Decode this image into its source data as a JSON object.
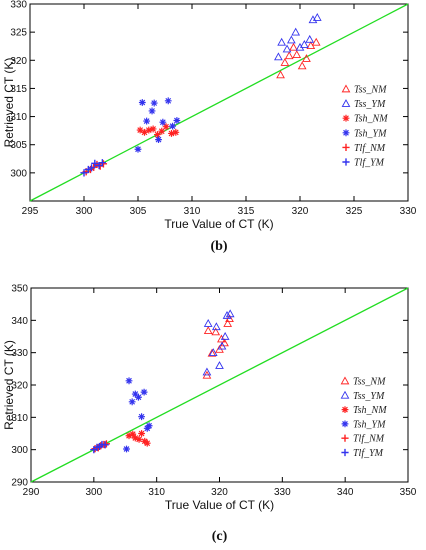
{
  "chart_data": [
    {
      "type": "scatter",
      "caption": "(b)",
      "xlabel": "True Value of CT (K)",
      "ylabel": "Retrieved CT (K)",
      "xlim": [
        295,
        330
      ],
      "ylim": [
        295,
        330
      ],
      "xticks": [
        295,
        300,
        305,
        310,
        315,
        320,
        325,
        330
      ],
      "yticks": [
        300,
        305,
        310,
        315,
        320,
        325,
        330
      ],
      "grid": false,
      "legend_position": "right",
      "reference_line": {
        "color": "#22dd22",
        "points": [
          [
            295,
            295
          ],
          [
            330,
            330
          ]
        ]
      },
      "series": [
        {
          "name": "Tss_NM",
          "marker": "triangle",
          "color": "#ff2222",
          "points": [
            [
              318.2,
              317.4
            ],
            [
              318.6,
              319.6
            ],
            [
              319.0,
              320.8
            ],
            [
              319.4,
              322.3
            ],
            [
              319.7,
              321.0
            ],
            [
              320.2,
              319.0
            ],
            [
              320.6,
              320.3
            ],
            [
              321.0,
              322.6
            ],
            [
              321.5,
              323.2
            ]
          ]
        },
        {
          "name": "Tss_YM",
          "marker": "triangle",
          "color": "#3333ee",
          "points": [
            [
              318.0,
              320.6
            ],
            [
              318.3,
              323.2
            ],
            [
              318.8,
              322.0
            ],
            [
              319.2,
              323.6
            ],
            [
              319.6,
              325.0
            ],
            [
              320.0,
              322.3
            ],
            [
              320.4,
              322.8
            ],
            [
              320.9,
              323.7
            ],
            [
              321.2,
              327.2
            ],
            [
              321.6,
              327.6
            ]
          ]
        },
        {
          "name": "Tsh_NM",
          "marker": "asterisk",
          "color": "#ff2222",
          "points": [
            [
              305.2,
              307.6
            ],
            [
              305.6,
              307.2
            ],
            [
              306.0,
              307.6
            ],
            [
              306.4,
              307.8
            ],
            [
              306.8,
              306.8
            ],
            [
              307.2,
              307.4
            ],
            [
              307.6,
              308.2
            ],
            [
              308.1,
              307.0
            ],
            [
              308.5,
              307.2
            ]
          ]
        },
        {
          "name": "Tsh_YM",
          "marker": "asterisk",
          "color": "#3333ee",
          "points": [
            [
              305.0,
              304.2
            ],
            [
              305.4,
              312.5
            ],
            [
              305.8,
              309.2
            ],
            [
              306.3,
              311.0
            ],
            [
              306.5,
              312.4
            ],
            [
              306.9,
              305.9
            ],
            [
              307.3,
              309.0
            ],
            [
              307.8,
              312.8
            ],
            [
              308.2,
              308.3
            ],
            [
              308.6,
              309.3
            ]
          ]
        },
        {
          "name": "Tlf_NM",
          "marker": "plus",
          "color": "#ff2222",
          "points": [
            [
              300.2,
              300.2
            ],
            [
              300.6,
              300.6
            ],
            [
              300.9,
              301.0
            ],
            [
              301.2,
              301.5
            ],
            [
              301.5,
              301.2
            ],
            [
              301.8,
              301.6
            ]
          ]
        },
        {
          "name": "Tlf_YM",
          "marker": "plus",
          "color": "#3333ee",
          "points": [
            [
              300.0,
              300.0
            ],
            [
              300.4,
              300.6
            ],
            [
              300.7,
              300.9
            ],
            [
              301.0,
              301.7
            ],
            [
              301.4,
              301.3
            ],
            [
              301.7,
              301.8
            ]
          ]
        }
      ]
    },
    {
      "type": "scatter",
      "caption": "(c)",
      "xlabel": "True Value of CT (K)",
      "ylabel": "Retrieved CT (K)",
      "xlim": [
        290,
        350
      ],
      "ylim": [
        290,
        350
      ],
      "xticks": [
        290,
        300,
        310,
        320,
        330,
        340,
        350
      ],
      "yticks": [
        290,
        300,
        310,
        320,
        330,
        340,
        350
      ],
      "grid": false,
      "legend_position": "right",
      "reference_line": {
        "color": "#22dd22",
        "points": [
          [
            290,
            290
          ],
          [
            350,
            350
          ]
        ]
      },
      "series": [
        {
          "name": "Tss_NM",
          "marker": "triangle",
          "color": "#ff2222",
          "points": [
            [
              318.0,
              323.0
            ],
            [
              318.2,
              336.8
            ],
            [
              318.8,
              329.8
            ],
            [
              319.4,
              336.4
            ],
            [
              320.0,
              331.0
            ],
            [
              320.3,
              334.2
            ],
            [
              320.8,
              333.0
            ],
            [
              321.3,
              339.0
            ],
            [
              321.6,
              340.5
            ]
          ]
        },
        {
          "name": "Tss_YM",
          "marker": "triangle",
          "color": "#3333ee",
          "points": [
            [
              318.0,
              324.0
            ],
            [
              318.2,
              339.0
            ],
            [
              319.0,
              330.0
            ],
            [
              319.5,
              338.0
            ],
            [
              320.0,
              326.0
            ],
            [
              320.4,
              332.0
            ],
            [
              320.9,
              335.0
            ],
            [
              321.2,
              341.5
            ],
            [
              321.7,
              342.0
            ]
          ]
        },
        {
          "name": "Tsh_NM",
          "marker": "asterisk",
          "color": "#ff2222",
          "points": [
            [
              305.6,
              304.3
            ],
            [
              306.2,
              304.8
            ],
            [
              306.6,
              303.6
            ],
            [
              307.2,
              303.2
            ],
            [
              307.6,
              305.0
            ],
            [
              308.1,
              302.6
            ],
            [
              308.5,
              302.0
            ]
          ]
        },
        {
          "name": "Tsh_YM",
          "marker": "asterisk",
          "color": "#3333ee",
          "points": [
            [
              305.2,
              300.2
            ],
            [
              305.6,
              321.3
            ],
            [
              306.1,
              314.8
            ],
            [
              306.6,
              317.2
            ],
            [
              307.1,
              316.2
            ],
            [
              307.6,
              310.2
            ],
            [
              308.0,
              317.8
            ],
            [
              308.5,
              306.6
            ],
            [
              308.8,
              307.4
            ]
          ]
        },
        {
          "name": "Tlf_NM",
          "marker": "plus",
          "color": "#ff2222",
          "points": [
            [
              300.2,
              300.3
            ],
            [
              300.7,
              300.6
            ],
            [
              301.1,
              301.2
            ],
            [
              301.6,
              301.6
            ],
            [
              302.0,
              301.8
            ]
          ]
        },
        {
          "name": "Tlf_YM",
          "marker": "plus",
          "color": "#3333ee",
          "points": [
            [
              300.0,
              300.0
            ],
            [
              300.5,
              300.7
            ],
            [
              300.9,
              301.0
            ],
            [
              301.3,
              301.6
            ],
            [
              301.8,
              301.5
            ]
          ]
        }
      ]
    }
  ]
}
